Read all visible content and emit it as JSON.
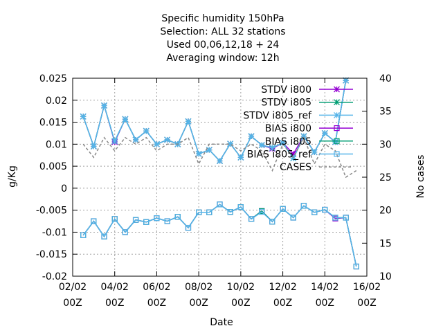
{
  "chart_data": {
    "type": "line",
    "title_lines": [
      "Specific humidity 150hPa",
      "Selection: ALL      32 stations",
      "Used  00,06,12,18 + 24",
      "Averaging window: 12h"
    ],
    "xlabel": "Date",
    "ylabel": "g/Kg",
    "y2label": "No cases",
    "xlim": [
      0,
      14
    ],
    "ylim": [
      -0.02,
      0.025
    ],
    "y2lim": [
      10,
      40
    ],
    "x_ticks": [
      {
        "v": 0,
        "l1": "02/02",
        "l2": "00Z"
      },
      {
        "v": 2,
        "l1": "04/02",
        "l2": "00Z"
      },
      {
        "v": 4,
        "l1": "06/02",
        "l2": "00Z"
      },
      {
        "v": 6,
        "l1": "08/02",
        "l2": "00Z"
      },
      {
        "v": 8,
        "l1": "10/02",
        "l2": "00Z"
      },
      {
        "v": 10,
        "l1": "12/02",
        "l2": "00Z"
      },
      {
        "v": 12,
        "l1": "14/02",
        "l2": "00Z"
      },
      {
        "v": 14,
        "l1": "16/02",
        "l2": "00Z"
      }
    ],
    "y_ticks": [
      {
        "v": 0.025,
        "l": "0.025"
      },
      {
        "v": 0.02,
        "l": "0.02"
      },
      {
        "v": 0.015,
        "l": "0.015"
      },
      {
        "v": 0.01,
        "l": "0.01"
      },
      {
        "v": 0.005,
        "l": "0.005"
      },
      {
        "v": 0,
        "l": "0"
      },
      {
        "v": -0.005,
        "l": "-0.005"
      },
      {
        "v": -0.01,
        "l": "-0.01"
      },
      {
        "v": -0.015,
        "l": "-0.015"
      },
      {
        "v": -0.02,
        "l": "-0.02"
      }
    ],
    "y2_ticks": [
      {
        "v": 40,
        "l": "40"
      },
      {
        "v": 35,
        "l": "35"
      },
      {
        "v": 30,
        "l": "30"
      },
      {
        "v": 25,
        "l": "25"
      },
      {
        "v": 20,
        "l": "20"
      },
      {
        "v": 15,
        "l": "15"
      },
      {
        "v": 10,
        "l": "10"
      }
    ],
    "x": [
      0.5,
      1.0,
      1.5,
      2.0,
      2.5,
      3.0,
      3.5,
      4.0,
      4.5,
      5.0,
      5.5,
      6.0,
      6.5,
      7.0,
      7.5,
      8.0,
      8.5,
      9.0,
      9.5,
      10.0,
      10.5,
      11.0,
      11.5,
      12.0,
      12.5,
      13.0,
      13.5
    ],
    "series": [
      {
        "name": "STDV i800",
        "color": "#9400d3",
        "marker": "star",
        "axis": "y1",
        "values": [
          0.0163,
          0.0095,
          0.0188,
          0.0105,
          0.0157,
          0.011,
          0.013,
          0.01,
          0.011,
          0.01,
          0.0152,
          0.0078,
          0.0087,
          0.0062,
          0.0101,
          0.007,
          0.0118,
          0.0098,
          0.009,
          0.0103,
          0.0078,
          0.0118,
          0.0082,
          0.0125,
          0.0105,
          0.0245,
          null
        ]
      },
      {
        "name": "STDV i805",
        "color": "#009e73",
        "marker": "star",
        "axis": "y1",
        "values": [
          0.0163,
          0.0095,
          0.0188,
          0.0107,
          0.0157,
          0.011,
          0.013,
          0.01,
          0.011,
          0.01,
          0.0152,
          0.0078,
          0.0087,
          0.0062,
          0.0101,
          0.007,
          0.0118,
          0.0098,
          0.0092,
          0.0103,
          0.0068,
          0.0118,
          0.0082,
          0.0125,
          0.0105,
          0.0245,
          null
        ]
      },
      {
        "name": "STDV i805_ref",
        "color": "#56b4e9",
        "marker": "star",
        "axis": "y1",
        "values": [
          0.0163,
          0.0095,
          0.0188,
          0.0107,
          0.0157,
          0.011,
          0.013,
          0.01,
          0.011,
          0.01,
          0.0152,
          0.0078,
          0.0087,
          0.0062,
          0.0101,
          0.007,
          0.0118,
          0.0098,
          0.0092,
          0.0103,
          0.0068,
          0.0118,
          0.0082,
          0.0125,
          0.0105,
          0.0245,
          null
        ]
      },
      {
        "name": "BIAS i800",
        "color": "#9400d3",
        "marker": "square",
        "axis": "y1",
        "values": [
          -0.0107,
          -0.0075,
          -0.011,
          -0.007,
          -0.01,
          -0.0072,
          -0.0077,
          -0.0068,
          -0.0075,
          -0.0065,
          -0.009,
          -0.0055,
          -0.0055,
          -0.0037,
          -0.0054,
          -0.0043,
          -0.007,
          -0.0052,
          -0.0076,
          -0.0047,
          -0.0067,
          -0.004,
          -0.0055,
          -0.0049,
          -0.0069,
          -0.0067,
          -0.0178
        ]
      },
      {
        "name": "BIAS i805",
        "color": "#009e73",
        "marker": "square",
        "axis": "y1",
        "values": [
          -0.0107,
          -0.0075,
          -0.011,
          -0.007,
          -0.01,
          -0.0072,
          -0.0077,
          -0.0068,
          -0.0075,
          -0.0065,
          -0.009,
          -0.0055,
          -0.0055,
          -0.0037,
          -0.0054,
          -0.0043,
          -0.007,
          -0.0052,
          -0.0076,
          -0.0047,
          -0.0067,
          -0.004,
          -0.0055,
          -0.0049,
          -0.0067,
          -0.0067,
          -0.0178
        ]
      },
      {
        "name": "BIAS i805_ref",
        "color": "#56b4e9",
        "marker": "square",
        "axis": "y1",
        "values": [
          -0.0107,
          -0.0075,
          -0.011,
          -0.007,
          -0.01,
          -0.0072,
          -0.0077,
          -0.0068,
          -0.0075,
          -0.0065,
          -0.009,
          -0.0055,
          -0.0055,
          -0.0037,
          -0.0054,
          -0.0043,
          -0.007,
          -0.0054,
          -0.0076,
          -0.0047,
          -0.0067,
          -0.004,
          -0.0055,
          -0.0049,
          -0.0067,
          -0.0067,
          -0.0178
        ]
      },
      {
        "name": "CASES",
        "color": "#888888",
        "marker": "none",
        "dashed": true,
        "axis": "y2",
        "values": [
          30,
          28,
          31,
          29,
          31,
          30,
          31,
          29,
          30,
          30,
          31,
          27,
          30,
          30,
          30,
          29,
          30,
          29,
          26,
          30,
          28,
          31,
          27,
          30,
          29,
          25,
          26
        ]
      }
    ],
    "legend_position": "top-right",
    "legend": [
      {
        "series": 0,
        "label": "STDV i800"
      },
      {
        "series": 1,
        "label": "STDV i805"
      },
      {
        "series": 2,
        "label": "STDV i805_ref"
      },
      {
        "series": 3,
        "label": "BIAS i800"
      },
      {
        "series": 4,
        "label": "BIAS i805"
      },
      {
        "series": 5,
        "label": "BIAS i805_ref"
      },
      {
        "series": 6,
        "label": "CASES"
      }
    ],
    "grid": true
  }
}
